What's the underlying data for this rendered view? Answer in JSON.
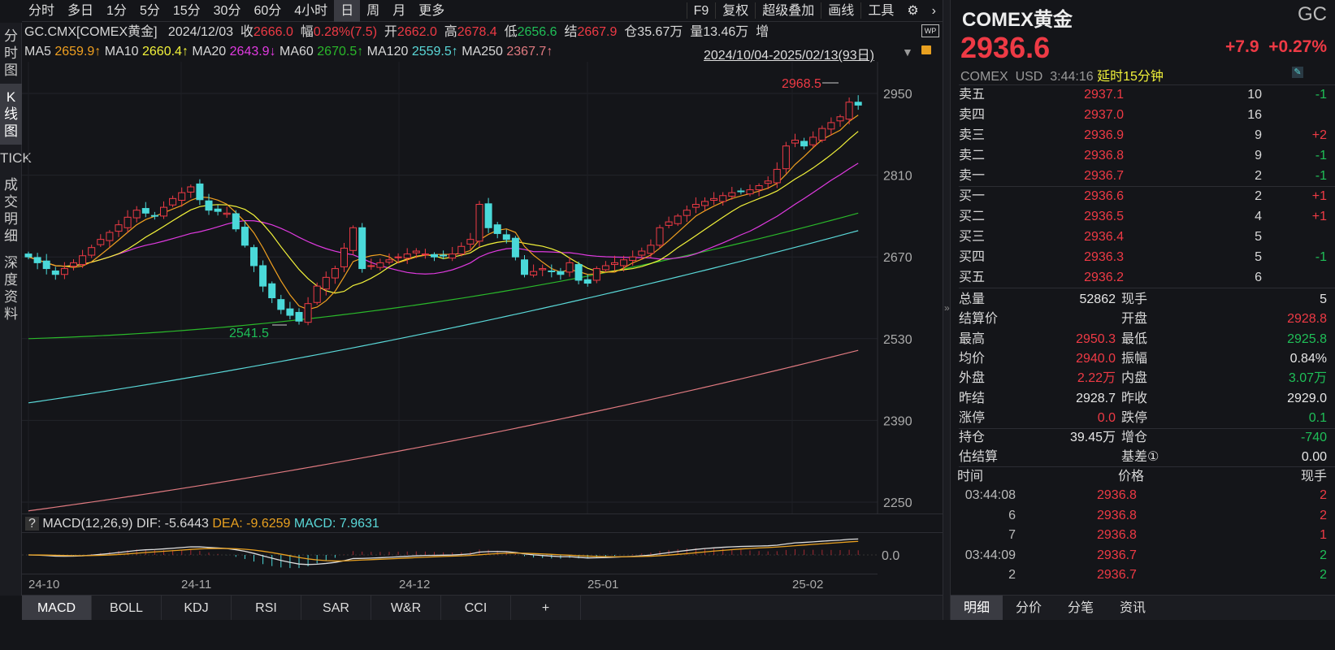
{
  "toolbar": {
    "periods": [
      "分时",
      "多日",
      "1分",
      "5分",
      "15分",
      "30分",
      "60分",
      "4小时",
      "日",
      "周",
      "月",
      "更多"
    ],
    "active_period": "日",
    "tools": [
      "F9",
      "复权",
      "超级叠加",
      "画线",
      "工具"
    ]
  },
  "left_tabs": [
    "分时图",
    "K线图",
    "TICK",
    "成交明细",
    "深度资料"
  ],
  "info": {
    "symbol": "GC.CMX[COMEX黄金]",
    "date": "2024/12/03",
    "close_label": "收",
    "close": "2666.0",
    "chg_label": "幅",
    "chg": "0.28%(7.5)",
    "open_label": "开",
    "open": "2662.0",
    "high_label": "高",
    "high": "2678.4",
    "low_label": "低",
    "low": "2656.6",
    "settle_label": "结",
    "settle": "2667.9",
    "oi_label": "仓",
    "oi": "35.67万",
    "vol_label": "量",
    "vol": "13.46万",
    "inc_label": "增"
  },
  "ma": [
    {
      "label": "MA5",
      "value": "2659.9↑",
      "color": "#f0a020"
    },
    {
      "label": "MA10",
      "value": "2660.4↑",
      "color": "#f2f23a"
    },
    {
      "label": "MA20",
      "value": "2643.9↓",
      "color": "#e03ae0"
    },
    {
      "label": "MA60",
      "value": "2670.5↑",
      "color": "#2ab82a"
    },
    {
      "label": "MA120",
      "value": "2559.5↑",
      "color": "#5ad8d8"
    },
    {
      "label": "MA250",
      "value": "2367.7↑",
      "color": "#e07a80"
    }
  ],
  "range": "2024/10/04-2025/02/13(93日)",
  "chart_data": {
    "type": "candlestick",
    "y_ticks": [
      2950,
      2810,
      2670,
      2530,
      2390,
      2250
    ],
    "ylim": [
      2250,
      2950
    ],
    "x_ticks": [
      "24-10",
      "24-11",
      "24-12",
      "25-01",
      "25-02"
    ],
    "closes": [
      2670,
      2660,
      2650,
      2640,
      2650,
      2660,
      2672,
      2686,
      2700,
      2712,
      2725,
      2738,
      2750,
      2745,
      2740,
      2755,
      2770,
      2780,
      2790,
      2768,
      2750,
      2748,
      2745,
      2718,
      2690,
      2655,
      2620,
      2600,
      2580,
      2570,
      2560,
      2590,
      2620,
      2635,
      2650,
      2685,
      2720,
      2650,
      2655,
      2660,
      2665,
      2670,
      2675,
      2680,
      2675,
      2670,
      2672,
      2675,
      2688,
      2700,
      2760,
      2720,
      2710,
      2700,
      2670,
      2640,
      2645,
      2650,
      2645,
      2640,
      2660,
      2630,
      2625,
      2650,
      2655,
      2660,
      2665,
      2670,
      2680,
      2690,
      2720,
      2730,
      2740,
      2750,
      2760,
      2765,
      2770,
      2775,
      2780,
      2782,
      2785,
      2792,
      2800,
      2820,
      2860,
      2870,
      2860,
      2875,
      2890,
      2900,
      2910,
      2935,
      2930
    ],
    "ma60": [
      2530,
      2745
    ],
    "ma120": [
      2420,
      2715
    ],
    "ma250": [
      2235,
      2510
    ],
    "max_label": "2968.5",
    "min_label": "2541.5",
    "up_color": "#ee3a45",
    "down_color": "#4ad9d9"
  },
  "macd": {
    "help": "?",
    "title": "MACD(12,26,9)",
    "dif": "DIF: -5.6443",
    "dea": "DEA: -9.6259",
    "macd": "MACD: 7.9631",
    "zero": "0.0"
  },
  "bottom_tabs": [
    "MACD",
    "BOLL",
    "KDJ",
    "RSI",
    "SAR",
    "W&R",
    "CCI",
    "+"
  ],
  "quote": {
    "name": "COMEX黄金",
    "code": "GC",
    "price": "2936.6",
    "change": "+7.9",
    "pct": "+0.27%",
    "exchange": "COMEX",
    "currency": "USD",
    "time": "3:44:16",
    "delay": "延时15分钟"
  },
  "book": [
    {
      "l": "卖五",
      "p": "2937.1",
      "q": "10",
      "d": "-1"
    },
    {
      "l": "卖四",
      "p": "2937.0",
      "q": "16",
      "d": ""
    },
    {
      "l": "卖三",
      "p": "2936.9",
      "q": "9",
      "d": "+2"
    },
    {
      "l": "卖二",
      "p": "2936.8",
      "q": "9",
      "d": "-1"
    },
    {
      "l": "卖一",
      "p": "2936.7",
      "q": "2",
      "d": "-1"
    },
    {
      "l": "买一",
      "p": "2936.6",
      "q": "2",
      "d": "+1"
    },
    {
      "l": "买二",
      "p": "2936.5",
      "q": "4",
      "d": "+1"
    },
    {
      "l": "买三",
      "p": "2936.4",
      "q": "5",
      "d": ""
    },
    {
      "l": "买四",
      "p": "2936.3",
      "q": "5",
      "d": "-1"
    },
    {
      "l": "买五",
      "p": "2936.2",
      "q": "6",
      "d": ""
    }
  ],
  "stats": [
    {
      "l1": "总量",
      "v1": "52862",
      "c1": "w",
      "l2": "现手",
      "v2": "5",
      "c2": "w"
    },
    {
      "l1": "结算价",
      "v1": "",
      "c1": "w",
      "l2": "开盘",
      "v2": "2928.8",
      "c2": "r"
    },
    {
      "l1": "最高",
      "v1": "2950.3",
      "c1": "r",
      "l2": "最低",
      "v2": "2925.8",
      "c2": "g"
    },
    {
      "l1": "均价",
      "v1": "2940.0",
      "c1": "r",
      "l2": "振幅",
      "v2": "0.84%",
      "c2": "w"
    },
    {
      "l1": "外盘",
      "v1": "2.22万",
      "c1": "r",
      "l2": "内盘",
      "v2": "3.07万",
      "c2": "g"
    },
    {
      "l1": "昨结",
      "v1": "2928.7",
      "c1": "w",
      "l2": "昨收",
      "v2": "2929.0",
      "c2": "w"
    },
    {
      "l1": "涨停",
      "v1": "0.0",
      "c1": "r",
      "l2": "跌停",
      "v2": "0.1",
      "c2": "g"
    },
    {
      "l1": "持仓",
      "v1": "39.45万",
      "c1": "w",
      "l2": "增仓",
      "v2": "-740",
      "c2": "g"
    },
    {
      "l1": "估结算",
      "v1": "",
      "c1": "w",
      "l2": "基差①",
      "v2": "0.00",
      "c2": "w"
    }
  ],
  "trades_header": {
    "time": "时间",
    "price": "价格",
    "qty": "现手"
  },
  "trades": [
    {
      "t": "03:44:08",
      "p": "2936.8",
      "q": "2",
      "c": "r"
    },
    {
      "t": "6",
      "p": "2936.8",
      "q": "2",
      "c": "r"
    },
    {
      "t": "7",
      "p": "2936.8",
      "q": "1",
      "c": "r"
    },
    {
      "t": "03:44:09",
      "p": "2936.7",
      "q": "2",
      "c": "g"
    },
    {
      "t": "2",
      "p": "2936.7",
      "q": "2",
      "c": "g"
    }
  ],
  "right_tabs": [
    "明细",
    "分价",
    "分笔",
    "资讯"
  ]
}
